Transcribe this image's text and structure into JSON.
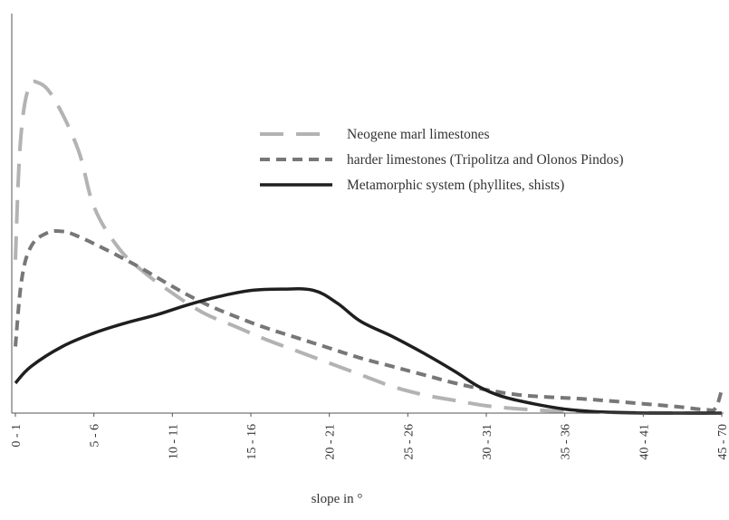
{
  "chart_data": {
    "type": "line",
    "xlabel": "slope in °",
    "ylabel": "",
    "title": "",
    "categories": [
      "0 - 1",
      "5 - 6",
      "10 - 11",
      "15 - 16",
      "20 - 21",
      "25 - 26",
      "30 - 31",
      "35 - 36",
      "40 - 41",
      "45 - 70"
    ],
    "x_range": [
      0,
      45
    ],
    "y_range": [
      0,
      100
    ],
    "grid": false,
    "legend_position": "upper-right",
    "series": [
      {
        "name": "Neogene marl limestones",
        "style": "long-dash",
        "color": "#b3b3b3",
        "points": [
          [
            0,
            46
          ],
          [
            0.3,
            80
          ],
          [
            0.8,
            97
          ],
          [
            1.5,
            99
          ],
          [
            2.5,
            94
          ],
          [
            4,
            79
          ],
          [
            5,
            62
          ],
          [
            6.5,
            50
          ],
          [
            8,
            43
          ],
          [
            10,
            36
          ],
          [
            12,
            30
          ],
          [
            14,
            26
          ],
          [
            16,
            22
          ],
          [
            18,
            18.5
          ],
          [
            20,
            15
          ],
          [
            22,
            11.5
          ],
          [
            24,
            8
          ],
          [
            26,
            5.5
          ],
          [
            28,
            3.8
          ],
          [
            30,
            2.2
          ],
          [
            32,
            1.3
          ],
          [
            34,
            0.7
          ],
          [
            36,
            0.4
          ],
          [
            38,
            0.2
          ],
          [
            40,
            0.1
          ],
          [
            42,
            0.05
          ],
          [
            44,
            0
          ],
          [
            45,
            0
          ]
        ]
      },
      {
        "name": "harder limestones (Tripolitza and Olonos Pindos)",
        "style": "short-dash",
        "color": "#777777",
        "points": [
          [
            0,
            20
          ],
          [
            0.4,
            40
          ],
          [
            1,
            50
          ],
          [
            2,
            54
          ],
          [
            3,
            54.5
          ],
          [
            4,
            53
          ],
          [
            6,
            48.5
          ],
          [
            8,
            43.5
          ],
          [
            10,
            38
          ],
          [
            12,
            33
          ],
          [
            14,
            29
          ],
          [
            16,
            25.5
          ],
          [
            18,
            22.5
          ],
          [
            20,
            19.5
          ],
          [
            22,
            16.5
          ],
          [
            24,
            14
          ],
          [
            26,
            11.5
          ],
          [
            28,
            9
          ],
          [
            30,
            7
          ],
          [
            32,
            5.5
          ],
          [
            34,
            4.8
          ],
          [
            36,
            4.3
          ],
          [
            38,
            3.6
          ],
          [
            40,
            2.8
          ],
          [
            42,
            2
          ],
          [
            44,
            1
          ],
          [
            44.6,
            1.5
          ],
          [
            45,
            7
          ]
        ]
      },
      {
        "name": "Metamorphic system (phyllites, shists)",
        "style": "solid",
        "color": "#1f1f1f",
        "points": [
          [
            0,
            9
          ],
          [
            1,
            14
          ],
          [
            3,
            20
          ],
          [
            5,
            24
          ],
          [
            7,
            27
          ],
          [
            9,
            29.5
          ],
          [
            11,
            32.5
          ],
          [
            13,
            35
          ],
          [
            15,
            36.8
          ],
          [
            17,
            37.2
          ],
          [
            19,
            36.8
          ],
          [
            20.5,
            33
          ],
          [
            22,
            27.5
          ],
          [
            24,
            23
          ],
          [
            26,
            18
          ],
          [
            28,
            12.5
          ],
          [
            29.5,
            8
          ],
          [
            31,
            5
          ],
          [
            33,
            2.8
          ],
          [
            35,
            1.2
          ],
          [
            37,
            0.4
          ],
          [
            39,
            0.1
          ],
          [
            41,
            0
          ],
          [
            43,
            0
          ],
          [
            45,
            0
          ]
        ]
      }
    ]
  }
}
